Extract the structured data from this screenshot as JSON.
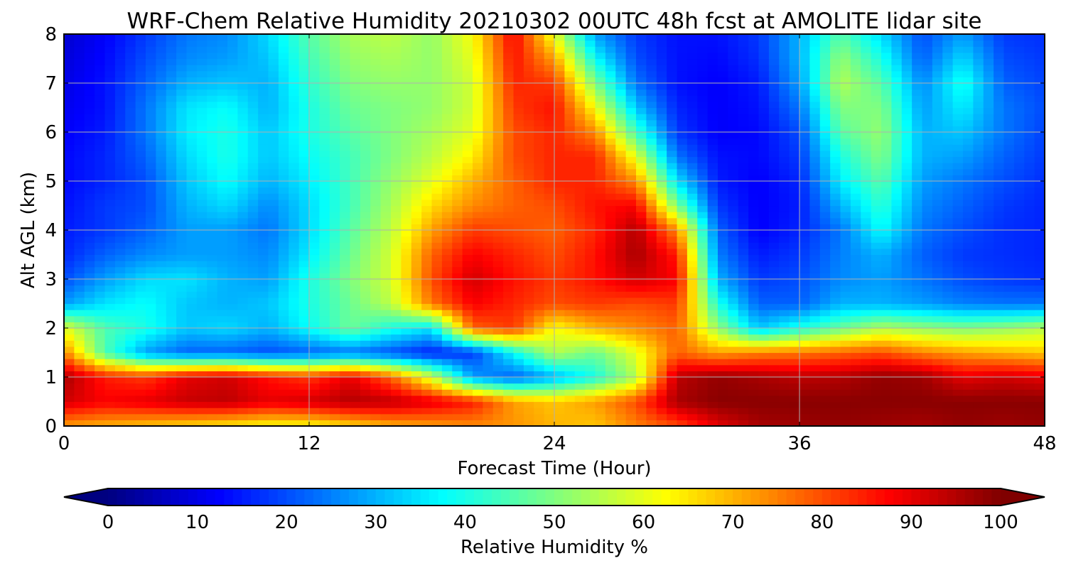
{
  "chart_data": {
    "type": "heatmap",
    "title": "WRF-Chem Relative Humidity 20210302 00UTC 48h fcst at AMOLITE lidar site",
    "xlabel": "Forecast Time (Hour)",
    "ylabel": "Alt AGL (km)",
    "x_ticks": [
      "0",
      "12",
      "24",
      "36",
      "48"
    ],
    "y_ticks": [
      "0",
      "1",
      "2",
      "3",
      "4",
      "5",
      "6",
      "7",
      "8"
    ],
    "xlim": [
      0,
      48
    ],
    "ylim": [
      0,
      8
    ],
    "grid": true,
    "x": [
      0,
      2,
      4,
      6,
      8,
      10,
      12,
      14,
      16,
      18,
      20,
      22,
      24,
      26,
      28,
      30,
      32,
      34,
      36,
      38,
      40,
      42,
      44,
      46,
      48
    ],
    "y": [
      0,
      0.5,
      1,
      1.5,
      2,
      2.5,
      3,
      3.5,
      4,
      4.5,
      5,
      5.5,
      6,
      6.5,
      7,
      7.5,
      8
    ],
    "z": [
      [
        72,
        70,
        68,
        66,
        64,
        62,
        62,
        66,
        70,
        72,
        74,
        73,
        70,
        68,
        75,
        80,
        90,
        96,
        97,
        98,
        97,
        96,
        98,
        97,
        98
      ],
      [
        92,
        88,
        90,
        93,
        94,
        90,
        92,
        95,
        94,
        90,
        85,
        72,
        68,
        72,
        80,
        96,
        99,
        99,
        99,
        99,
        99,
        99,
        99,
        99,
        99
      ],
      [
        96,
        85,
        82,
        90,
        92,
        86,
        82,
        90,
        78,
        58,
        28,
        22,
        30,
        40,
        55,
        94,
        98,
        96,
        94,
        95,
        98,
        97,
        90,
        92,
        90
      ],
      [
        75,
        45,
        28,
        22,
        22,
        20,
        22,
        24,
        20,
        15,
        18,
        38,
        55,
        48,
        60,
        78,
        72,
        75,
        76,
        78,
        80,
        75,
        72,
        70,
        68
      ],
      [
        60,
        45,
        40,
        32,
        34,
        30,
        38,
        48,
        40,
        35,
        78,
        82,
        62,
        70,
        74,
        78,
        52,
        32,
        40,
        48,
        55,
        52,
        50,
        52,
        55
      ],
      [
        28,
        35,
        38,
        32,
        30,
        32,
        40,
        48,
        56,
        76,
        88,
        84,
        80,
        82,
        80,
        82,
        40,
        22,
        22,
        30,
        30,
        28,
        25,
        24,
        24
      ],
      [
        20,
        28,
        34,
        35,
        30,
        28,
        40,
        50,
        58,
        80,
        92,
        86,
        82,
        86,
        92,
        88,
        30,
        18,
        20,
        26,
        28,
        24,
        20,
        18,
        17
      ],
      [
        16,
        22,
        26,
        28,
        28,
        26,
        36,
        48,
        58,
        78,
        88,
        84,
        80,
        86,
        96,
        85,
        25,
        15,
        18,
        25,
        30,
        22,
        18,
        17,
        16
      ],
      [
        15,
        18,
        22,
        28,
        28,
        24,
        34,
        46,
        56,
        72,
        82,
        80,
        78,
        84,
        95,
        74,
        22,
        12,
        16,
        24,
        38,
        24,
        20,
        17,
        16
      ],
      [
        14,
        18,
        20,
        30,
        34,
        26,
        34,
        44,
        54,
        66,
        74,
        78,
        80,
        86,
        88,
        50,
        18,
        12,
        15,
        30,
        42,
        26,
        22,
        18,
        16
      ],
      [
        13,
        16,
        20,
        32,
        38,
        30,
        36,
        44,
        52,
        60,
        70,
        78,
        84,
        84,
        74,
        35,
        15,
        12,
        16,
        36,
        46,
        28,
        24,
        20,
        17
      ],
      [
        13,
        16,
        22,
        34,
        40,
        32,
        38,
        44,
        50,
        56,
        64,
        80,
        84,
        84,
        60,
        24,
        14,
        13,
        18,
        40,
        50,
        30,
        28,
        22,
        18
      ],
      [
        12,
        15,
        24,
        36,
        40,
        32,
        40,
        46,
        50,
        54,
        60,
        80,
        84,
        74,
        44,
        18,
        12,
        13,
        20,
        46,
        52,
        30,
        32,
        24,
        19
      ],
      [
        11,
        14,
        24,
        35,
        38,
        30,
        40,
        48,
        50,
        52,
        58,
        82,
        86,
        62,
        32,
        16,
        12,
        14,
        24,
        50,
        50,
        28,
        36,
        24,
        20
      ],
      [
        10,
        14,
        22,
        30,
        32,
        30,
        42,
        50,
        52,
        52,
        58,
        84,
        82,
        50,
        24,
        14,
        12,
        15,
        28,
        55,
        46,
        26,
        40,
        22,
        19
      ],
      [
        9,
        13,
        20,
        26,
        28,
        32,
        44,
        52,
        54,
        52,
        60,
        86,
        72,
        38,
        20,
        14,
        13,
        17,
        30,
        52,
        40,
        22,
        34,
        20,
        18
      ],
      [
        8,
        12,
        18,
        24,
        26,
        34,
        46,
        54,
        56,
        52,
        62,
        88,
        60,
        28,
        18,
        14,
        14,
        18,
        30,
        46,
        34,
        20,
        28,
        18,
        17
      ]
    ],
    "colorbar": {
      "label": "Relative Humidity %",
      "ticks": [
        "0",
        "10",
        "20",
        "30",
        "40",
        "50",
        "60",
        "70",
        "80",
        "90",
        "100"
      ],
      "range": [
        0,
        100
      ],
      "extend": "both"
    }
  }
}
